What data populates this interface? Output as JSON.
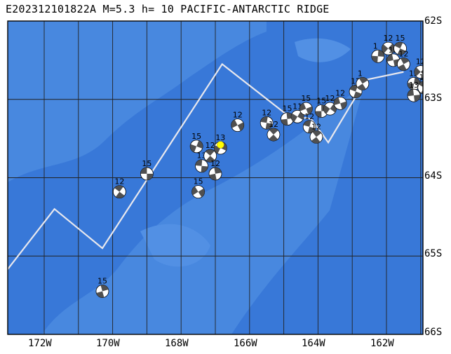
{
  "header": {
    "title": "E202312101822A  M=5.3  h= 10  PACIFIC-ANTARCTIC RIDGE"
  },
  "axes": {
    "lat_labels": [
      "62S",
      "63S",
      "64S",
      "65S",
      "66S"
    ],
    "lon_labels": [
      "172W",
      "170W",
      "168W",
      "166W",
      "164W",
      "162W"
    ]
  },
  "colors": {
    "ocean_deep": "#3878d8",
    "ocean_shallow": "#4a8ae0",
    "grid": "#222222",
    "plate_boundary": "#e8e8ee",
    "epicenter": "#ffff00",
    "mechanism_dark": "#505050",
    "mechanism_light": "#ffffff"
  },
  "ridge_vertices_lonlat": [
    [
      -173.3,
      65.3
    ],
    [
      -171.7,
      64.4
    ],
    [
      -170.3,
      64.9
    ],
    [
      -166.8,
      62.55
    ],
    [
      -164.9,
      63.2
    ],
    [
      -164.2,
      63.25
    ],
    [
      -163.7,
      63.55
    ],
    [
      -162.6,
      62.75
    ],
    [
      -161.5,
      62.65
    ]
  ],
  "mechanisms": [
    {
      "lon": -169.0,
      "lat": 63.95,
      "depth_label": "15"
    },
    {
      "lon": -169.8,
      "lat": 64.18,
      "depth_label": "12"
    },
    {
      "lon": -170.3,
      "lat": 65.45,
      "depth_label": "15"
    },
    {
      "lon": -167.55,
      "lat": 63.6,
      "depth_label": "15"
    },
    {
      "lon": -167.5,
      "lat": 64.18,
      "depth_label": "15"
    },
    {
      "lon": -167.4,
      "lat": 63.85,
      "depth_label": "13"
    },
    {
      "lon": -167.15,
      "lat": 63.72,
      "depth_label": "12"
    },
    {
      "lon": -167.0,
      "lat": 63.95,
      "depth_label": "12"
    },
    {
      "lon": -166.85,
      "lat": 63.62,
      "depth_label": "13"
    },
    {
      "lon": -166.35,
      "lat": 63.33,
      "depth_label": "12"
    },
    {
      "lon": -165.5,
      "lat": 63.3,
      "depth_label": "12"
    },
    {
      "lon": -165.3,
      "lat": 63.45,
      "depth_label": "12"
    },
    {
      "lon": -164.9,
      "lat": 63.25,
      "depth_label": "15"
    },
    {
      "lon": -164.6,
      "lat": 63.22,
      "depth_label": "11"
    },
    {
      "lon": -164.35,
      "lat": 63.12,
      "depth_label": "15"
    },
    {
      "lon": -164.25,
      "lat": 63.35,
      "depth_label": "12"
    },
    {
      "lon": -164.05,
      "lat": 63.48,
      "depth_label": "12"
    },
    {
      "lon": -163.9,
      "lat": 63.15,
      "depth_label": "15"
    },
    {
      "lon": -163.65,
      "lat": 63.12,
      "depth_label": "12"
    },
    {
      "lon": -163.35,
      "lat": 63.05,
      "depth_label": "12"
    },
    {
      "lon": -162.9,
      "lat": 62.9,
      "depth_label": "12"
    },
    {
      "lon": -162.7,
      "lat": 62.8,
      "depth_label": "1"
    },
    {
      "lon": -162.25,
      "lat": 62.45,
      "depth_label": "1"
    },
    {
      "lon": -161.95,
      "lat": 62.35,
      "depth_label": "12"
    },
    {
      "lon": -161.8,
      "lat": 62.5,
      "depth_label": "12"
    },
    {
      "lon": -161.6,
      "lat": 62.35,
      "depth_label": "15"
    },
    {
      "lon": -161.5,
      "lat": 62.55,
      "depth_label": "12"
    },
    {
      "lon": -161.2,
      "lat": 62.8,
      "depth_label": "12"
    },
    {
      "lon": -161.0,
      "lat": 62.65,
      "depth_label": "12"
    },
    {
      "lon": -161.2,
      "lat": 62.95,
      "depth_label": "13"
    },
    {
      "lon": -160.9,
      "lat": 62.85,
      "depth_label": "16"
    }
  ],
  "epicenter": {
    "lon": -166.85,
    "lat": 63.58
  }
}
